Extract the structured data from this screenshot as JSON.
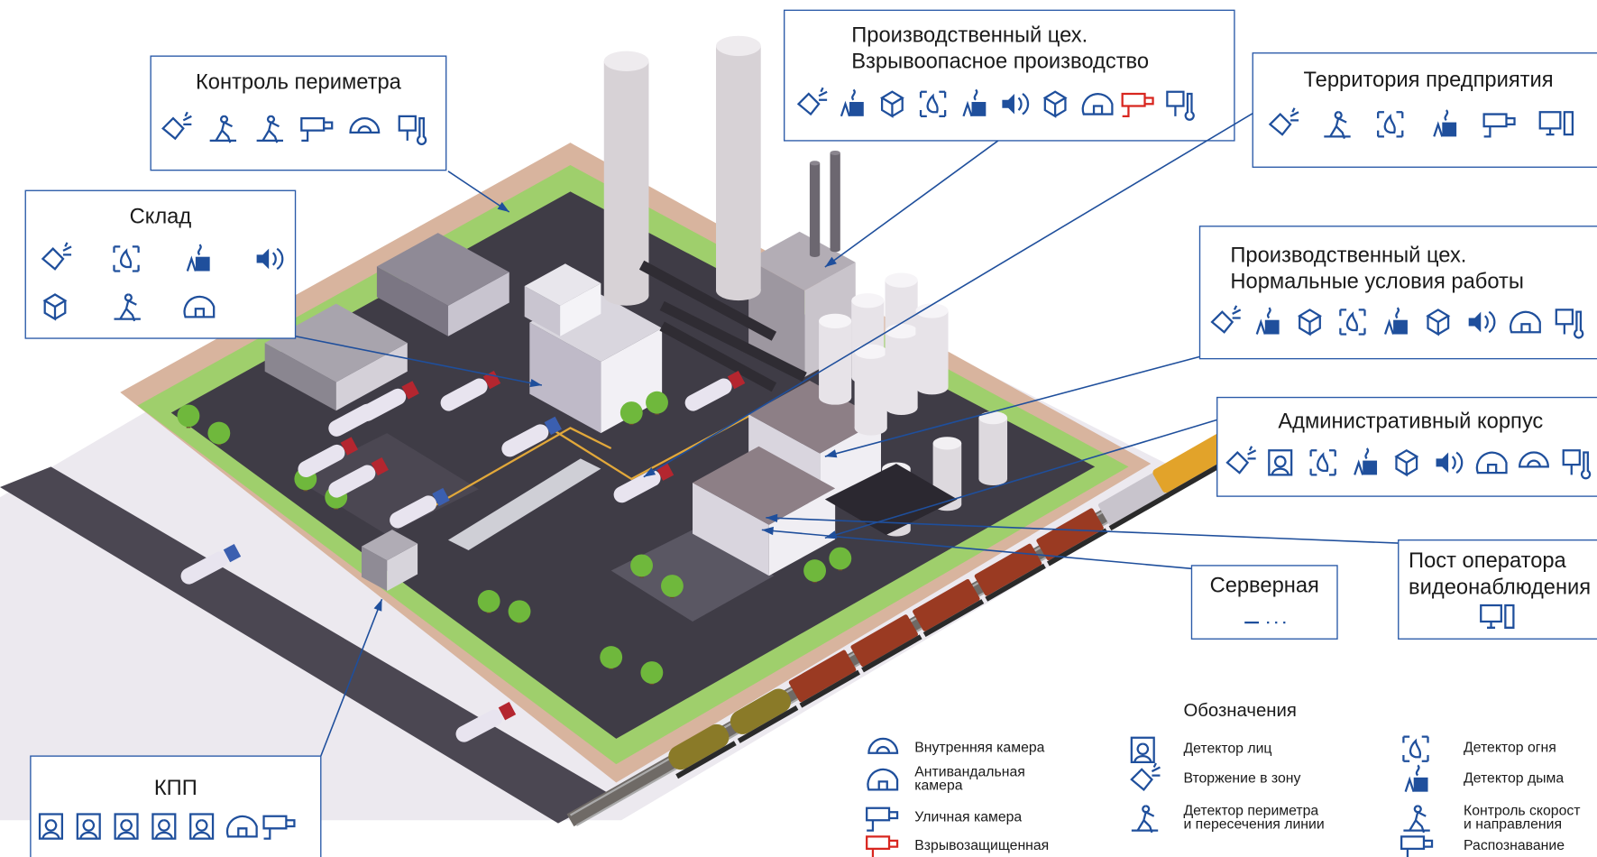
{
  "callouts": [
    {
      "lines": [
        "Контроль периметра"
      ]
    },
    {
      "lines": [
        "Склад"
      ]
    },
    {
      "lines": [
        "Производственный цех.",
        "Взрывоопасное производство"
      ]
    },
    {
      "lines": [
        "Территория предприятия"
      ]
    },
    {
      "lines": [
        "Производственный цех.",
        "Нормальные условия работы"
      ]
    },
    {
      "lines": [
        "Административный корпус"
      ]
    },
    {
      "lines": [
        "Серверная"
      ]
    },
    {
      "lines": [
        "Пост оператора",
        "видеонаблюдения"
      ]
    },
    {
      "lines": [
        "КПП"
      ]
    }
  ],
  "legend": {
    "title": "Обозначения",
    "items": [
      {
        "lines": [
          "Внутренняя камера"
        ]
      },
      {
        "lines": [
          "Антивандальная",
          "камера"
        ]
      },
      {
        "lines": [
          "Уличная камера"
        ]
      },
      {
        "lines": [
          "Взрывозащищенная"
        ]
      },
      {
        "lines": [
          "Детектор лиц"
        ]
      },
      {
        "lines": [
          "Вторжение в зону"
        ]
      },
      {
        "lines": [
          "Детектор периметра",
          "и пересечения линии"
        ]
      },
      {
        "lines": [
          "Детектор огня"
        ]
      },
      {
        "lines": [
          "Детектор дыма"
        ]
      },
      {
        "lines": [
          "Контроль скорост",
          "и направления"
        ]
      },
      {
        "lines": [
          "Распознавание"
        ]
      }
    ]
  }
}
